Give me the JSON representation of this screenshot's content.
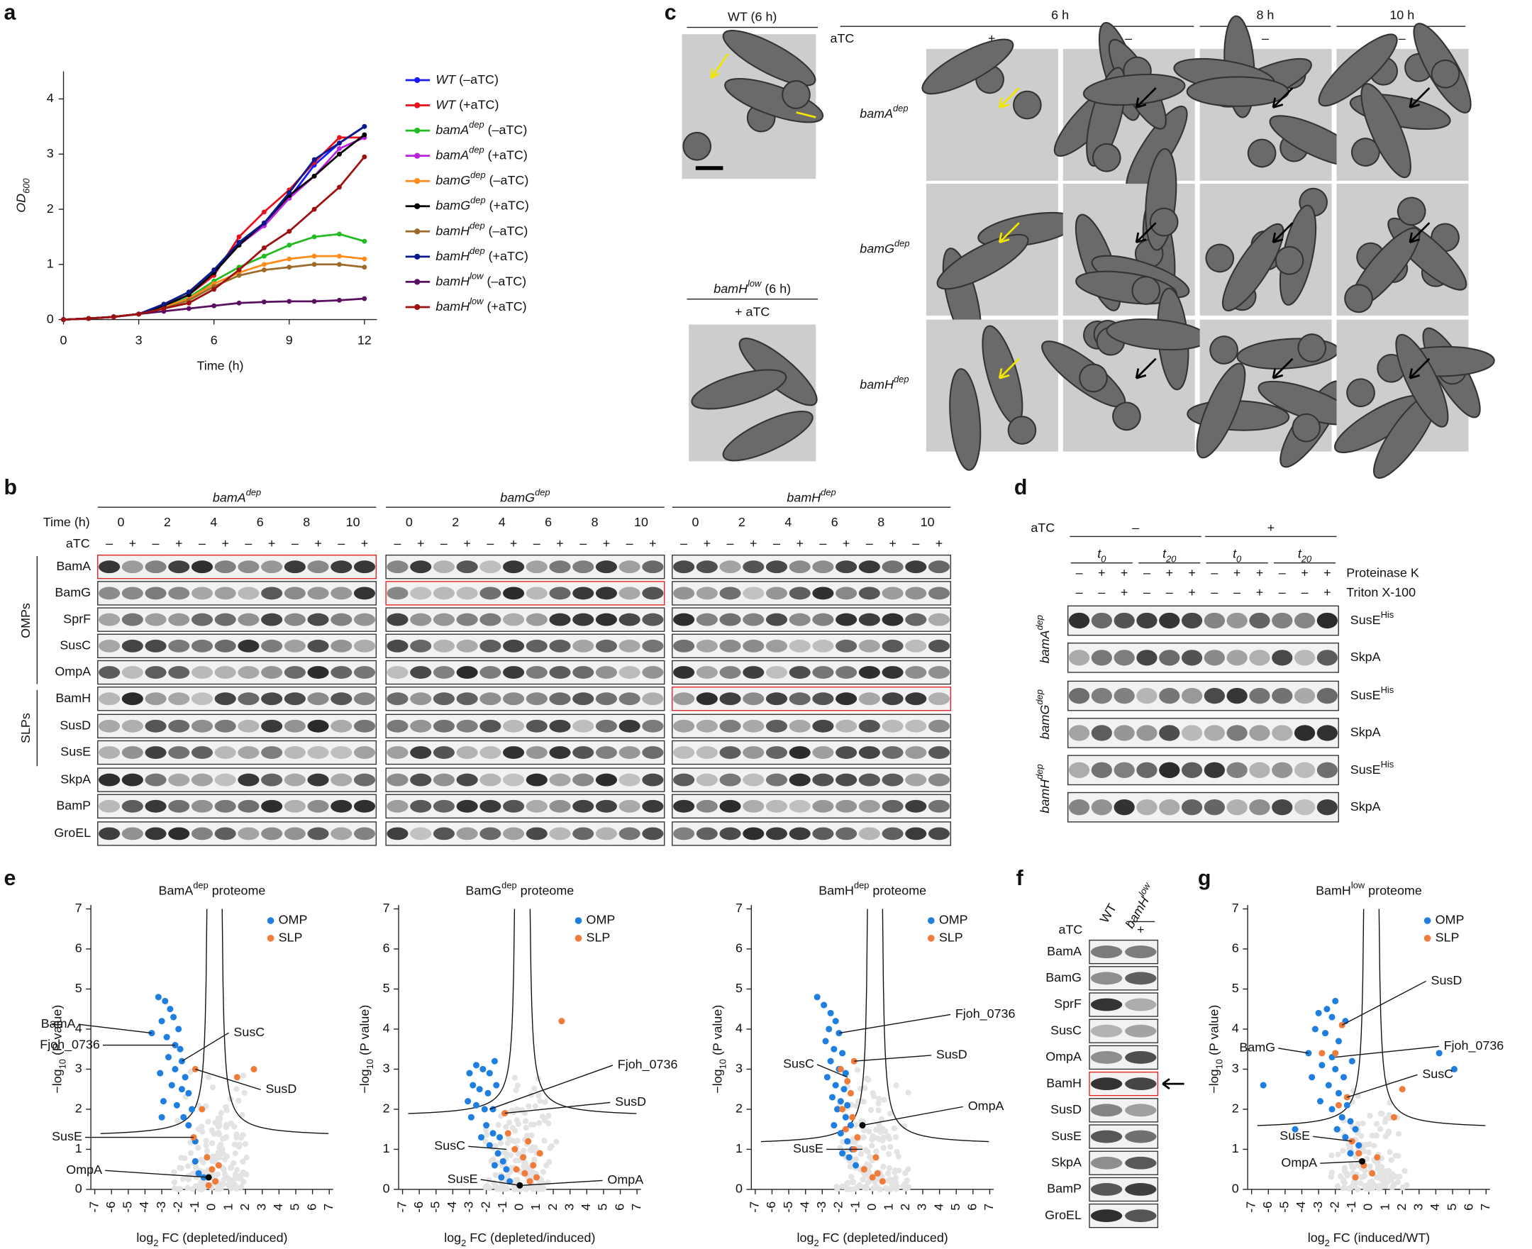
{
  "panel_labels": [
    "a",
    "b",
    "c",
    "d",
    "e",
    "f",
    "g"
  ],
  "chart_data": [
    {
      "type": "line",
      "xlabel": "Time (h)",
      "ylabel": {
        "text": "OD",
        "sub": "600"
      },
      "x": [
        0,
        1,
        2,
        3,
        4,
        5,
        6,
        7,
        8,
        9,
        10,
        11,
        12
      ],
      "xlim": [
        0,
        12.5
      ],
      "xticks": [
        0,
        3,
        6,
        9,
        12
      ],
      "ylim": [
        0,
        4.5
      ],
      "yticks": [
        0,
        1,
        2,
        3,
        4
      ],
      "series": [
        {
          "name": {
            "text": "WT",
            "after": " (–aTC)"
          },
          "color": "#1a1aff",
          "values": [
            0,
            0.02,
            0.05,
            0.1,
            0.25,
            0.45,
            0.85,
            1.4,
            1.7,
            2.2,
            2.8,
            3.2,
            3.5
          ]
        },
        {
          "name": {
            "text": "WT",
            "after": " (+aTC)"
          },
          "color": "#e8101a",
          "values": [
            0,
            0.02,
            0.05,
            0.1,
            0.25,
            0.45,
            0.8,
            1.5,
            1.95,
            2.35,
            2.85,
            3.3,
            3.3
          ]
        },
        {
          "name": {
            "text": "bamA",
            "sup": "dep",
            "after": " (–aTC)"
          },
          "color": "#22bb22",
          "values": [
            0,
            0.02,
            0.05,
            0.1,
            0.22,
            0.4,
            0.7,
            0.95,
            1.15,
            1.35,
            1.5,
            1.55,
            1.42
          ]
        },
        {
          "name": {
            "text": "bamA",
            "sup": "dep",
            "after": " (+aTC)"
          },
          "color": "#bb22dd",
          "values": [
            0,
            0.02,
            0.05,
            0.1,
            0.25,
            0.45,
            0.85,
            1.35,
            1.7,
            2.2,
            2.6,
            3.1,
            3.3
          ]
        },
        {
          "name": {
            "text": "bamG",
            "sup": "dep",
            "after": " (–aTC)"
          },
          "color": "#ff8c1a",
          "values": [
            0,
            0.02,
            0.05,
            0.1,
            0.22,
            0.38,
            0.65,
            0.85,
            1.0,
            1.1,
            1.15,
            1.15,
            1.1
          ]
        },
        {
          "name": {
            "text": "bamG",
            "sup": "dep",
            "after": " (+aTC)"
          },
          "color": "#000000",
          "values": [
            0,
            0.02,
            0.05,
            0.1,
            0.25,
            0.45,
            0.85,
            1.35,
            1.75,
            2.25,
            2.6,
            3.0,
            3.35
          ]
        },
        {
          "name": {
            "text": "bamH",
            "sup": "dep",
            "after": " (–aTC)"
          },
          "color": "#9c6b2a",
          "values": [
            0,
            0.02,
            0.05,
            0.1,
            0.2,
            0.35,
            0.6,
            0.8,
            0.9,
            0.95,
            1.0,
            1.0,
            0.95
          ]
        },
        {
          "name": {
            "text": "bamH",
            "sup": "dep",
            "after": " (+aTC)"
          },
          "color": "#0a1a8c",
          "values": [
            0,
            0.02,
            0.05,
            0.1,
            0.28,
            0.5,
            0.9,
            1.4,
            1.75,
            2.3,
            2.9,
            3.2,
            3.5
          ]
        },
        {
          "name": {
            "text": "bamH",
            "sup": "low",
            "after": " (–aTC)"
          },
          "color": "#5a1060",
          "values": [
            0,
            0.02,
            0.05,
            0.1,
            0.15,
            0.2,
            0.25,
            0.3,
            0.32,
            0.33,
            0.33,
            0.35,
            0.38
          ]
        },
        {
          "name": {
            "text": "bamH",
            "sup": "low",
            "after": " (+aTC)"
          },
          "color": "#9c1010",
          "values": [
            0,
            0.02,
            0.05,
            0.1,
            0.2,
            0.3,
            0.55,
            0.9,
            1.3,
            1.6,
            2.0,
            2.4,
            2.95
          ]
        }
      ]
    },
    {
      "type": "scatter",
      "title": {
        "text": "BamA",
        "sup": "dep",
        "after": " proteome"
      },
      "xlabel": {
        "text": "log",
        "sub": "2",
        "after": " FC (depleted/induced)"
      },
      "ylabel": {
        "text": "−log",
        "sub": "10",
        "after": " (P value)"
      },
      "xlim": [
        -7,
        7
      ],
      "xticks": [
        -7,
        -6,
        -5,
        -4,
        -3,
        -2,
        -1,
        0,
        1,
        2,
        3,
        4,
        5,
        6,
        7
      ],
      "ylim": [
        0,
        7
      ],
      "yticks": [
        0,
        1,
        2,
        3,
        4,
        5,
        6,
        7
      ],
      "threshold": 1.3,
      "series": [
        {
          "name": "OMP",
          "color": "#1f7fe0",
          "x": [
            -3.6,
            -2.2,
            -1.8,
            -1.0,
            -3.2,
            -2.8,
            -2.5,
            -2.3,
            -3.0,
            -2.0,
            -2.7,
            -1.9,
            -2.6,
            -2.2,
            -3.1,
            -1.6,
            -2.4,
            -1.8,
            -1.4,
            -2.9,
            -2.1,
            -1.2,
            -3.0,
            -1.7,
            -1.4,
            -1.0,
            -0.8,
            -0.5
          ],
          "values": [
            3.9,
            3.6,
            3.2,
            1.2,
            4.8,
            4.7,
            4.5,
            4.3,
            4.2,
            4.0,
            3.8,
            3.5,
            3.3,
            3.0,
            2.9,
            2.8,
            2.6,
            2.5,
            2.4,
            2.2,
            2.1,
            2.0,
            1.8,
            1.8,
            1.6,
            0.7,
            0.4,
            0.3
          ]
        },
        {
          "name": "SLP",
          "color": "#f07c3c",
          "x": [
            -1.0,
            -1.1,
            -0.3,
            0,
            0.2,
            -0.2,
            0.4,
            1.5,
            2.5,
            -0.6
          ],
          "values": [
            3.0,
            1.3,
            0.8,
            0.5,
            0.2,
            0.1,
            0.6,
            2.8,
            3.0,
            2.0
          ]
        }
      ],
      "annotations": [
        {
          "text": "BamA",
          "x": -3.6,
          "y": 3.9
        },
        {
          "text": "Fjoh_0736",
          "x": -2.2,
          "y": 3.6
        },
        {
          "text": "SusC",
          "x": -1.8,
          "y": 3.2
        },
        {
          "text": "SusD",
          "x": -1.0,
          "y": 3.0
        },
        {
          "text": "SusE",
          "x": -1.1,
          "y": 1.3
        },
        {
          "text": "OmpA",
          "x": -0.2,
          "y": 0.3,
          "color": "#000000"
        }
      ]
    },
    {
      "type": "scatter",
      "title": {
        "text": "BamG",
        "sup": "dep",
        "after": " proteome"
      },
      "xlabel": {
        "text": "log",
        "sub": "2",
        "after": " FC (depleted/induced)"
      },
      "ylabel": {
        "text": "−log",
        "sub": "10",
        "after": " (P value)"
      },
      "xlim": [
        -7,
        7
      ],
      "xticks": [
        -7,
        -6,
        -5,
        -4,
        -3,
        -2,
        -1,
        0,
        1,
        2,
        3,
        4,
        5,
        6,
        7
      ],
      "ylim": [
        0,
        7
      ],
      "yticks": [
        0,
        1,
        2,
        3,
        4,
        5,
        6,
        7
      ],
      "threshold": 1.8,
      "series": [
        {
          "name": "OMP",
          "color": "#1f7fe0",
          "x": [
            -3.0,
            -2.6,
            -2.2,
            -1.8,
            -1.5,
            -2.8,
            -2.4,
            -1.9,
            -1.4,
            -3.1,
            -2.6,
            -2.1,
            -1.6,
            -2.9,
            -2.0,
            -1.6,
            -1.2,
            -2.3,
            -1.8,
            -1.3,
            -1.0,
            -1.5,
            -0.8,
            -1.1,
            -0.6
          ],
          "values": [
            2.9,
            3.1,
            3.0,
            2.9,
            3.2,
            2.6,
            2.5,
            2.4,
            2.6,
            2.2,
            2.1,
            2.0,
            2.0,
            1.8,
            1.6,
            1.4,
            1.3,
            1.3,
            1.1,
            0.9,
            0.7,
            0.6,
            0.5,
            0.3,
            0.2
          ]
        },
        {
          "name": "SLP",
          "color": "#f07c3c",
          "x": [
            2.5,
            -0.9,
            -0.7,
            -0.3,
            0.2,
            0.5,
            0.8,
            1.0,
            0.3,
            -0.2,
            1.2,
            0.6
          ],
          "values": [
            4.2,
            1.9,
            1.4,
            1.0,
            0.8,
            1.2,
            0.6,
            0.3,
            0.4,
            0.5,
            0.9,
            0.2
          ]
        }
      ],
      "annotations": [
        {
          "text": "Fjoh_0736",
          "x": -1.8,
          "y": 2.0
        },
        {
          "text": "SusD",
          "x": -0.9,
          "y": 1.9
        },
        {
          "text": "SusC",
          "x": -0.8,
          "y": 1.0
        },
        {
          "text": "SusE",
          "x": 0,
          "y": 0.1,
          "color": "#000000"
        },
        {
          "text": "OmpA",
          "x": 0.1,
          "y": 0.1
        }
      ]
    },
    {
      "type": "scatter",
      "title": {
        "text": "BamH",
        "sup": "dep",
        "after": " proteome"
      },
      "xlabel": {
        "text": "log",
        "sub": "2",
        "after": " FC (depleted/induced)"
      },
      "ylabel": {
        "text": "−log",
        "sub": "10",
        "after": " (P value)"
      },
      "xlim": [
        -7,
        7
      ],
      "xticks": [
        -7,
        -6,
        -5,
        -4,
        -3,
        -2,
        -1,
        0,
        1,
        2,
        3,
        4,
        5,
        6,
        7
      ],
      "ylim": [
        0,
        7
      ],
      "yticks": [
        0,
        1,
        2,
        3,
        4,
        5,
        6,
        7
      ],
      "threshold": 1.1,
      "series": [
        {
          "name": "OMP",
          "color": "#1f7fe0",
          "x": [
            -3.3,
            -2.9,
            -2.5,
            -2.2,
            -2.6,
            -2.0,
            -2.8,
            -2.3,
            -1.8,
            -2.5,
            -2.0,
            -1.6,
            -2.7,
            -2.2,
            -1.7,
            -2.4,
            -1.9,
            -1.5,
            -2.1,
            -1.6,
            -2.3,
            -1.3,
            -1.9,
            -1.5,
            -1.2,
            -1.8,
            -1.4,
            -1.0
          ],
          "values": [
            4.8,
            4.6,
            4.4,
            4.2,
            4.0,
            3.9,
            3.7,
            3.5,
            3.4,
            3.2,
            3.0,
            2.9,
            2.8,
            2.6,
            2.5,
            2.3,
            2.2,
            2.1,
            2.0,
            1.8,
            1.6,
            1.6,
            1.4,
            1.2,
            1.0,
            0.9,
            0.8,
            0.6
          ]
        },
        {
          "name": "SLP",
          "color": "#f07c3c",
          "x": [
            -1.1,
            -1.9,
            -1.5,
            -1.3,
            -1.8,
            -1.2,
            -1.6,
            -0.9,
            -1.1,
            0.2,
            -0.5,
            0.3,
            0.6,
            0.0
          ],
          "values": [
            3.2,
            3.0,
            2.7,
            2.4,
            2.0,
            1.8,
            1.5,
            1.3,
            1.0,
            0.8,
            0.5,
            0.4,
            0.2,
            0.3
          ]
        }
      ],
      "annotations": [
        {
          "text": "Fjoh_0736",
          "x": -2.0,
          "y": 3.9
        },
        {
          "text": "SusD",
          "x": -1.1,
          "y": 3.2
        },
        {
          "text": "SusC",
          "x": -1.5,
          "y": 2.8
        },
        {
          "text": "OmpA",
          "x": -0.6,
          "y": 1.6,
          "color": "#000000"
        },
        {
          "text": "SusE",
          "x": -0.6,
          "y": 1.0
        }
      ]
    },
    {
      "type": "scatter",
      "title": {
        "text": "BamH",
        "sup": "low",
        "after": " proteome"
      },
      "xlabel": {
        "text": "log",
        "sub": "2",
        "after": " FC (induced/WT)"
      },
      "ylabel": {
        "text": "−log",
        "sub": "10",
        "after": " (P value)"
      },
      "xlim": [
        -7,
        7
      ],
      "xticks": [
        -7,
        -6,
        -5,
        -4,
        -3,
        -2,
        -1,
        0,
        1,
        2,
        3,
        4,
        5,
        6,
        7
      ],
      "ylim": [
        0,
        7
      ],
      "yticks": [
        0,
        1,
        2,
        3,
        4,
        5,
        6,
        7
      ],
      "threshold": 1.5,
      "series": [
        {
          "name": "OMP",
          "color": "#1f7fe0",
          "x": [
            -2.0,
            -2.5,
            -3.0,
            -2.2,
            -1.4,
            -3.2,
            -2.6,
            -1.8,
            -3.6,
            -2.2,
            -1.0,
            -2.8,
            -2.0,
            -3.4,
            -1.5,
            -2.4,
            -1.8,
            -2.9,
            -1.3,
            -2.2,
            -1.6,
            -1.1,
            -0.8,
            -1.9,
            -1.4,
            -0.6,
            -1.1,
            4.2,
            5.1,
            -6.3,
            -4.4
          ],
          "values": [
            4.7,
            4.5,
            4.4,
            4.3,
            4.2,
            4.0,
            3.9,
            3.7,
            3.4,
            3.3,
            3.2,
            3.1,
            3.0,
            2.8,
            2.8,
            2.6,
            2.4,
            2.2,
            2.1,
            2.0,
            1.8,
            1.7,
            1.5,
            1.5,
            1.3,
            1.1,
            0.9,
            3.4,
            3.0,
            2.6,
            1.5
          ]
        },
        {
          "name": "SLP",
          "color": "#f07c3c",
          "x": [
            -1.6,
            -2.0,
            -1.3,
            -1.8,
            -1.0,
            -0.6,
            -0.3,
            0.2,
            0.5,
            -0.8,
            1.5,
            2.0,
            -2.8
          ],
          "values": [
            4.1,
            3.4,
            2.3,
            2.1,
            1.2,
            0.9,
            0.6,
            0.4,
            0.8,
            0.3,
            1.8,
            2.5,
            3.4
          ]
        }
      ],
      "annotations": [
        {
          "text": "SusD",
          "x": -1.6,
          "y": 4.1
        },
        {
          "text": "BamG",
          "x": -3.6,
          "y": 3.4
        },
        {
          "text": "Fjoh_0736",
          "x": -2.0,
          "y": 3.3
        },
        {
          "text": "SusC",
          "x": -1.3,
          "y": 2.3
        },
        {
          "text": "SusE",
          "x": -1.0,
          "y": 1.2
        },
        {
          "text": "OmpA",
          "x": -0.4,
          "y": 0.7,
          "color": "#000000"
        }
      ]
    }
  ],
  "blot_b": {
    "groups": [
      {
        "text": "bamA",
        "sup": "dep"
      },
      {
        "text": "bamG",
        "sup": "dep"
      },
      {
        "text": "bamH",
        "sup": "dep"
      }
    ],
    "time_label": "Time (h)",
    "times": [
      0,
      2,
      4,
      6,
      8,
      10
    ],
    "atc_label": "aTC",
    "atc_signs": [
      "–",
      "+"
    ],
    "proteins": [
      "BamA",
      "BamG",
      "SprF",
      "SusC",
      "OmpA",
      "BamH",
      "SusD",
      "SusE",
      "SkpA",
      "BamP",
      "GroEL"
    ],
    "side_groups": [
      "OMPs",
      "SLPs"
    ]
  },
  "micro_c": {
    "wt_title": "WT (6 h)",
    "low_title": {
      "text": "bamH",
      "sup": "low",
      "after": " (6 h)"
    },
    "low_cond": "+ aTC",
    "times": [
      "6 h",
      "8 h",
      "10 h"
    ],
    "atc_label": "aTC",
    "conds": [
      "+",
      "–",
      "–",
      "–"
    ],
    "rows": [
      {
        "text": "bamA",
        "sup": "dep"
      },
      {
        "text": "bamG",
        "sup": "dep"
      },
      {
        "text": "bamH",
        "sup": "dep"
      }
    ]
  },
  "blot_d": {
    "atc_label": "aTC",
    "atc_groups": [
      "–",
      "+"
    ],
    "time_points": [
      {
        "text": "t",
        "sub": "0"
      },
      {
        "text": "t",
        "sub": "20"
      }
    ],
    "treatments": [
      "Proteinase K",
      "Triton X-100"
    ],
    "pk_signs": [
      "–",
      "+",
      "+"
    ],
    "tx_signs": [
      "–",
      "–",
      "+"
    ],
    "strains": [
      {
        "text": "bamA",
        "sup": "dep"
      },
      {
        "text": "bamG",
        "sup": "dep"
      },
      {
        "text": "bamH",
        "sup": "dep"
      }
    ],
    "bands": [
      {
        "text": "SusE",
        "sup": "His"
      },
      "SkpA"
    ]
  },
  "blot_f": {
    "columns": [
      "WT",
      {
        "text": "bamH",
        "sup": "low"
      }
    ],
    "atc_label": "aTC",
    "atc_sign": "+",
    "proteins": [
      "BamA",
      "BamG",
      "SprF",
      "SusC",
      "OmpA",
      "BamH",
      "SusD",
      "SusE",
      "SkpA",
      "BamP",
      "GroEL"
    ]
  }
}
